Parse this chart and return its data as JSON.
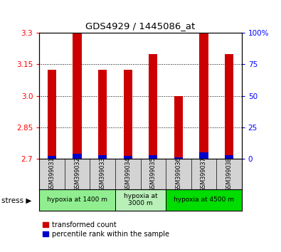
{
  "title": "GDS4929 / 1445086_at",
  "samples": [
    "GSM399031",
    "GSM399032",
    "GSM399033",
    "GSM399034",
    "GSM399035",
    "GSM399036",
    "GSM399037",
    "GSM399038"
  ],
  "red_values": [
    3.125,
    3.3,
    3.125,
    3.125,
    3.2,
    3.0,
    3.3,
    3.2
  ],
  "blue_percentiles": [
    2,
    4,
    3,
    2,
    3,
    1,
    5,
    3
  ],
  "ymin": 2.7,
  "ymax": 3.3,
  "yticks_left": [
    2.7,
    2.85,
    3.0,
    3.15,
    3.3
  ],
  "yticks_right": [
    0,
    25,
    50,
    75,
    100
  ],
  "groups": [
    {
      "label": "hypoxia at 1400 m",
      "start": 0,
      "end": 3,
      "color": "#90EE90"
    },
    {
      "label": "hypoxia at\n3000 m",
      "start": 3,
      "end": 5,
      "color": "#b8f0b8"
    },
    {
      "label": "hypoxia at 4500 m",
      "start": 5,
      "end": 8,
      "color": "#00dd00"
    }
  ],
  "bar_width": 0.35,
  "red_color": "#cc0000",
  "blue_color": "#0000cc",
  "bg_color": "#d3d3d3",
  "stress_label": "stress",
  "legend_red": "transformed count",
  "legend_blue": "percentile rank within the sample"
}
